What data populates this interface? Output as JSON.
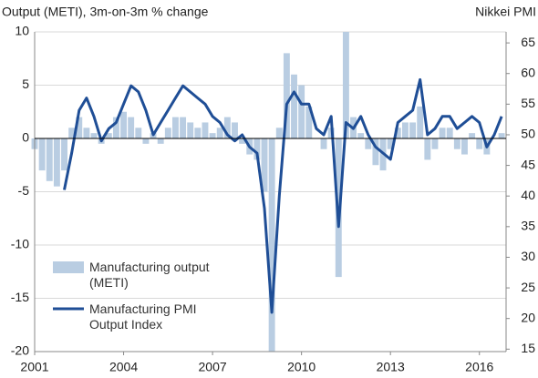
{
  "chart_data": {
    "type": "bar_line",
    "title": "Output (METI), 3m-on-3m % change",
    "y2_title": "Nikkei PMI",
    "x": [
      2001.0,
      2001.25,
      2001.5,
      2001.75,
      2002.0,
      2002.25,
      2002.5,
      2002.75,
      2003.0,
      2003.25,
      2003.5,
      2003.75,
      2004.0,
      2004.25,
      2004.5,
      2004.75,
      2005.0,
      2005.25,
      2005.5,
      2005.75,
      2006.0,
      2006.25,
      2006.5,
      2006.75,
      2007.0,
      2007.25,
      2007.5,
      2007.75,
      2008.0,
      2008.25,
      2008.5,
      2008.75,
      2009.0,
      2009.25,
      2009.5,
      2009.75,
      2010.0,
      2010.25,
      2010.5,
      2010.75,
      2011.0,
      2011.25,
      2011.5,
      2011.75,
      2012.0,
      2012.25,
      2012.5,
      2012.75,
      2013.0,
      2013.25,
      2013.5,
      2013.75,
      2014.0,
      2014.25,
      2014.5,
      2014.75,
      2015.0,
      2015.25,
      2015.5,
      2015.75,
      2016.0,
      2016.25,
      2016.5,
      2016.75
    ],
    "series": [
      {
        "name": "Manufacturing output (METI)",
        "kind": "bar",
        "color": "#b9cde2",
        "values": [
          -1,
          -3,
          -4,
          -4.5,
          -3,
          1,
          2,
          1,
          0.5,
          -0.5,
          0.5,
          2,
          2.5,
          2,
          1,
          -0.5,
          0.5,
          -0.5,
          1,
          2,
          2,
          1.5,
          1,
          1.5,
          0.5,
          1,
          2,
          1.5,
          -0.5,
          -1.5,
          -2,
          -5,
          -20,
          1,
          8,
          6,
          5,
          3,
          0,
          -1,
          1,
          -13,
          10,
          2,
          0.5,
          -1,
          -2.5,
          -3,
          -1,
          1,
          1.5,
          1.5,
          3,
          -2,
          -1,
          1,
          1,
          -1,
          -1.5,
          0.5,
          -1,
          -1.5,
          0,
          0.5
        ]
      },
      {
        "name": "Manufacturing PMI Output Index",
        "kind": "line",
        "axis": "y2",
        "color": "#1f4e96",
        "values": [
          null,
          null,
          null,
          null,
          41,
          47,
          54,
          56,
          53,
          49,
          51,
          52,
          55,
          58,
          57,
          54,
          50,
          52,
          54,
          56,
          58,
          57,
          56,
          55,
          53,
          52,
          50,
          49,
          50,
          48,
          47,
          38,
          21,
          40,
          55,
          57,
          55,
          55,
          51,
          50,
          53,
          35,
          52,
          51,
          53,
          50,
          48,
          47,
          46,
          52,
          53,
          54,
          59,
          50,
          51,
          53,
          53,
          51,
          52,
          53,
          52,
          48,
          50,
          53
        ]
      }
    ],
    "xlim": [
      2001,
      2016.9
    ],
    "xticks": [
      2001,
      2004,
      2007,
      2010,
      2013,
      2016
    ],
    "ylim": [
      -20,
      10
    ],
    "yticks": [
      10,
      5,
      0,
      -5,
      -10,
      -15,
      -20
    ],
    "y2lim": [
      14.6,
      66.8
    ],
    "y2ticks": [
      15,
      20,
      25,
      30,
      35,
      40,
      45,
      50,
      55,
      60,
      65
    ],
    "grid": true
  }
}
